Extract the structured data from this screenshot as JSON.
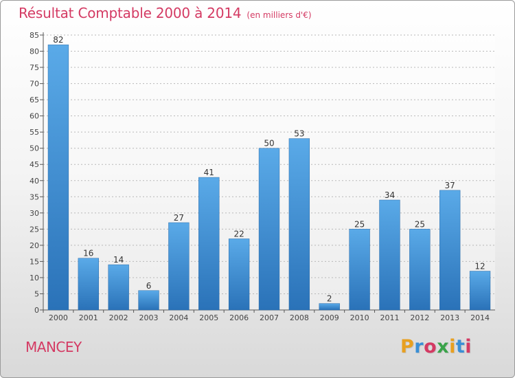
{
  "header": {
    "title": "Résultat Comptable 2000 à 2014",
    "subtitle": "(en milliers d'€)"
  },
  "footer": {
    "commune": "MANCEY",
    "logo": {
      "letters": [
        "P",
        "r",
        "o",
        "x",
        "i",
        "t",
        "i"
      ],
      "colors": [
        "#e8a020",
        "#3a8fd6",
        "#d43a63",
        "#3aa34a",
        "#e8a020",
        "#3a8fd6",
        "#d43a63"
      ]
    }
  },
  "chart_data": {
    "type": "bar",
    "categories": [
      "2000",
      "2001",
      "2002",
      "2003",
      "2004",
      "2005",
      "2006",
      "2007",
      "2008",
      "2009",
      "2010",
      "2011",
      "2012",
      "2013",
      "2014"
    ],
    "values": [
      82,
      16,
      14,
      6,
      27,
      41,
      22,
      50,
      53,
      2,
      25,
      34,
      25,
      37,
      12
    ],
    "title": "Résultat Comptable 2000 à 2014",
    "xlabel": "",
    "ylabel": "",
    "ylim": [
      0,
      85
    ],
    "yticks": [
      0,
      5,
      10,
      15,
      20,
      25,
      30,
      35,
      40,
      45,
      50,
      55,
      60,
      65,
      70,
      75,
      80,
      85
    ],
    "grid": true,
    "bar_color": "#3a8fd6",
    "data_labels": true
  }
}
